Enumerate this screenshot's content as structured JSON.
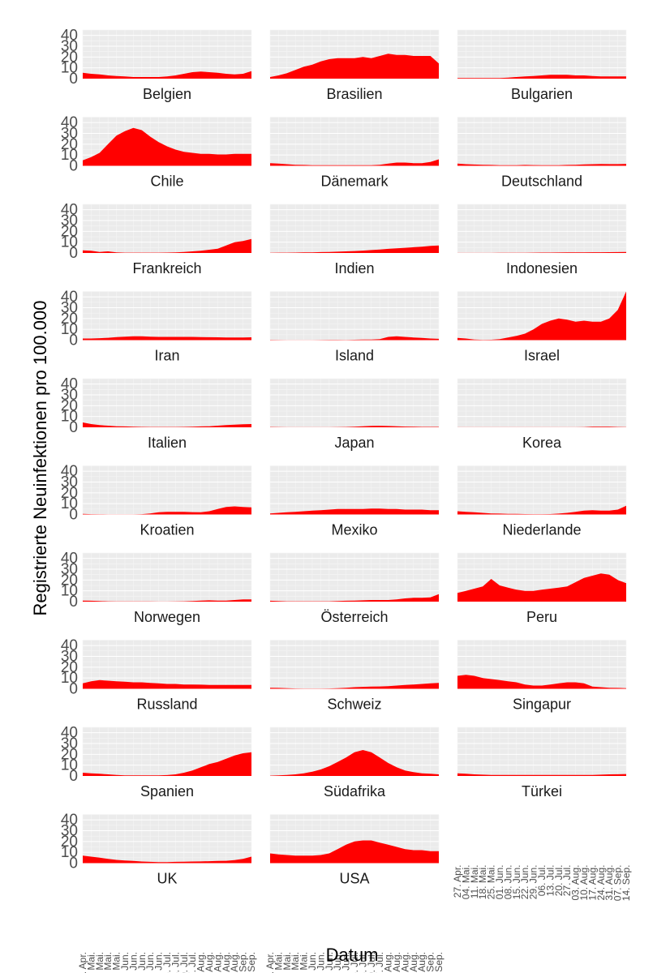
{
  "chart_data": {
    "type": "area",
    "facet_layout": "10 rows x 3 columns",
    "xlabel": "Datum",
    "ylabel": "Registrierte Neuinfektionen pro 100.000",
    "ylim": [
      0,
      45
    ],
    "yticks": [
      0,
      10,
      20,
      30,
      40
    ],
    "x_ticks": [
      "27. Apr.",
      "04. Mai.",
      "11. Mai.",
      "18. Mai.",
      "25. Mai.",
      "01. Jun.",
      "08. Jun.",
      "15. Jun.",
      "22. Jun.",
      "29. Jun.",
      "06. Jul.",
      "13. Jul.",
      "20. Jul.",
      "27. Jul.",
      "03. Aug.",
      "10. Aug.",
      "17. Aug.",
      "24. Aug.",
      "31. Aug.",
      "07. Sep.",
      "14. Sep."
    ],
    "series_note": "approximate weekly values read from the chart, one value per x tick",
    "color": "#ff0000",
    "series": [
      {
        "name": "Belgien",
        "values": [
          5.5,
          4.5,
          4,
          3,
          2.5,
          2,
          1.5,
          1.5,
          1.5,
          1.5,
          2,
          3,
          4.5,
          6,
          6.5,
          6,
          5.5,
          4.5,
          4,
          4.5,
          7
        ]
      },
      {
        "name": "Brasilien",
        "values": [
          1.5,
          3,
          5,
          8,
          11,
          13,
          16,
          18,
          19,
          19,
          19,
          20,
          19,
          21,
          23,
          22,
          22,
          21,
          21,
          21,
          14
        ]
      },
      {
        "name": "Bulgarien",
        "values": [
          0.5,
          0.5,
          0.5,
          0.5,
          0.5,
          0.5,
          1,
          1.5,
          2,
          2.5,
          3,
          3.5,
          3.5,
          3.5,
          3,
          3,
          2.5,
          2,
          2,
          2,
          2
        ]
      },
      {
        "name": "Chile",
        "values": [
          5,
          8,
          12,
          20,
          28,
          32,
          35,
          33,
          27,
          22,
          18,
          15,
          13,
          12,
          11,
          11,
          10.5,
          10.5,
          11,
          11,
          11
        ]
      },
      {
        "name": "Dänemark",
        "values": [
          2.5,
          2,
          1.5,
          1,
          0.8,
          0.6,
          0.5,
          0.5,
          0.5,
          0.5,
          0.5,
          0.5,
          0.6,
          1,
          2,
          3,
          3,
          2.5,
          2.5,
          3.5,
          6
        ]
      },
      {
        "name": "Deutschland",
        "values": [
          2,
          1.5,
          1.2,
          1,
          0.8,
          0.6,
          0.5,
          0.5,
          0.8,
          0.7,
          0.5,
          0.5,
          0.6,
          0.8,
          1,
          1.3,
          1.5,
          1.7,
          1.6,
          1.6,
          1.8
        ]
      },
      {
        "name": "Frankreich",
        "values": [
          2.5,
          2,
          1,
          1.5,
          0.5,
          0.3,
          0.3,
          0.3,
          0.3,
          0.3,
          0.4,
          0.6,
          1,
          1.5,
          2,
          3,
          4,
          7,
          10,
          11,
          13
        ]
      },
      {
        "name": "Indien",
        "values": [
          0.2,
          0.3,
          0.3,
          0.4,
          0.5,
          0.6,
          0.8,
          1,
          1.2,
          1.5,
          1.8,
          2.2,
          2.7,
          3.2,
          3.8,
          4.3,
          4.8,
          5.3,
          5.8,
          6.5,
          7
        ]
      },
      {
        "name": "Indonesien",
        "values": [
          0.1,
          0.1,
          0.1,
          0.1,
          0.1,
          0.15,
          0.2,
          0.2,
          0.25,
          0.3,
          0.35,
          0.4,
          0.45,
          0.5,
          0.55,
          0.6,
          0.65,
          0.7,
          0.75,
          0.8,
          0.9
        ]
      },
      {
        "name": "Iran",
        "values": [
          1.5,
          1.5,
          1.8,
          2.2,
          2.8,
          3.2,
          3.5,
          3.5,
          3.2,
          3,
          3,
          3,
          3,
          3,
          2.8,
          2.7,
          2.6,
          2.5,
          2.5,
          2.5,
          2.6
        ]
      },
      {
        "name": "Island",
        "values": [
          0.3,
          0.2,
          0.1,
          0.1,
          0.1,
          0.1,
          0.2,
          0.3,
          0.3,
          0.2,
          0.4,
          0.6,
          0.5,
          1,
          3,
          3.5,
          3,
          2.5,
          2,
          1.5,
          1.2
        ]
      },
      {
        "name": "Israel",
        "values": [
          2,
          1.5,
          0.5,
          0.3,
          0.4,
          1,
          2.5,
          4,
          6,
          10,
          15,
          18,
          20,
          19,
          17,
          18,
          17,
          17,
          20,
          28,
          45
        ]
      },
      {
        "name": "Italien",
        "values": [
          4.5,
          3,
          2,
          1.5,
          1,
          0.8,
          0.5,
          0.4,
          0.3,
          0.3,
          0.3,
          0.3,
          0.4,
          0.5,
          0.8,
          1,
          1.5,
          2,
          2.5,
          2.8,
          3
        ]
      },
      {
        "name": "Japan",
        "values": [
          0.3,
          0.2,
          0.1,
          0.1,
          0.1,
          0.1,
          0.1,
          0.1,
          0.2,
          0.3,
          0.6,
          1,
          1.3,
          1.4,
          1.2,
          0.9,
          0.7,
          0.5,
          0.4,
          0.4,
          0.4
        ]
      },
      {
        "name": "Korea",
        "values": [
          0.1,
          0.1,
          0.1,
          0.1,
          0.1,
          0.1,
          0.1,
          0.1,
          0.1,
          0.1,
          0.1,
          0.1,
          0.1,
          0.1,
          0.1,
          0.2,
          0.5,
          0.6,
          0.5,
          0.3,
          0.2
        ]
      },
      {
        "name": "Kroatien",
        "values": [
          0.5,
          0.3,
          0.2,
          0.1,
          0.1,
          0.1,
          0.1,
          0.3,
          1,
          2,
          2.5,
          2.5,
          2.5,
          2.2,
          2,
          3,
          5,
          7,
          7.5,
          7,
          6.5
        ]
      },
      {
        "name": "Mexiko",
        "values": [
          1,
          1.5,
          2,
          2.5,
          3,
          3.5,
          4,
          4.5,
          5,
          5,
          5,
          5,
          5.5,
          5.5,
          5,
          5,
          4.5,
          4.5,
          4.5,
          4,
          4
        ]
      },
      {
        "name": "Niederlande",
        "values": [
          3,
          2.5,
          2,
          1.5,
          1,
          0.8,
          0.5,
          0.5,
          0.4,
          0.3,
          0.3,
          0.4,
          0.8,
          1.5,
          2.5,
          3.5,
          4,
          3.5,
          3.5,
          4.5,
          8
        ]
      },
      {
        "name": "Norwegen",
        "values": [
          1,
          0.8,
          0.5,
          0.3,
          0.2,
          0.2,
          0.2,
          0.2,
          0.2,
          0.1,
          0.1,
          0.2,
          0.3,
          0.5,
          1,
          1.2,
          1,
          1,
          1.5,
          2,
          2
        ]
      },
      {
        "name": "Österreich",
        "values": [
          0.8,
          0.5,
          0.3,
          0.3,
          0.3,
          0.3,
          0.3,
          0.3,
          0.5,
          0.8,
          1,
          1.2,
          1.5,
          1.5,
          1.5,
          2,
          3,
          3.5,
          3.5,
          4,
          7
        ]
      },
      {
        "name": "Peru",
        "values": [
          8,
          10,
          12,
          14,
          21,
          15,
          13,
          11,
          10,
          10,
          11,
          12,
          13,
          14,
          18,
          22,
          24,
          26,
          25,
          20,
          17
        ]
      },
      {
        "name": "Russland",
        "values": [
          5,
          7,
          8,
          7.5,
          7,
          6.5,
          6,
          6,
          5.5,
          5,
          4.5,
          4.5,
          4,
          4,
          3.8,
          3.5,
          3.5,
          3.5,
          3.5,
          3.5,
          3.5
        ]
      },
      {
        "name": "Schweiz",
        "values": [
          1,
          0.8,
          0.5,
          0.3,
          0.2,
          0.2,
          0.2,
          0.3,
          0.5,
          1,
          1.5,
          1.8,
          2,
          2.2,
          2.5,
          3,
          3.5,
          4,
          4.5,
          5,
          5.5
        ]
      },
      {
        "name": "Singapur",
        "values": [
          12,
          13,
          12,
          10,
          9,
          8,
          7,
          6,
          4,
          3,
          3,
          4,
          5,
          6,
          6,
          5,
          2,
          1.5,
          1,
          0.8,
          0.6
        ]
      },
      {
        "name": "Spanien",
        "values": [
          3,
          2.5,
          2,
          1.5,
          1,
          0.5,
          0.5,
          0.5,
          0.5,
          0.5,
          0.8,
          1.5,
          3,
          5,
          8,
          11,
          13,
          16,
          19,
          21,
          22
        ]
      },
      {
        "name": "Südafrika",
        "values": [
          0.3,
          0.5,
          1,
          1.5,
          2.5,
          4,
          6,
          9,
          13,
          17,
          22,
          24,
          22,
          17,
          12,
          8,
          5,
          3.5,
          2.5,
          2,
          1.5
        ]
      },
      {
        "name": "Türkei",
        "values": [
          2.5,
          2,
          1.5,
          1.2,
          1,
          1,
          1,
          1,
          1,
          1,
          1,
          1,
          1,
          1,
          1,
          1,
          1,
          1.2,
          1.5,
          1.6,
          1.8
        ]
      },
      {
        "name": "UK",
        "values": [
          7,
          6,
          5,
          4,
          3,
          2.5,
          2,
          1.5,
          1.2,
          1,
          1,
          1.2,
          1.3,
          1.5,
          1.6,
          1.8,
          2,
          2.2,
          2.8,
          4,
          6
        ]
      },
      {
        "name": "USA",
        "values": [
          9,
          8,
          7.5,
          7,
          7,
          7,
          7.5,
          9,
          13,
          17,
          20,
          21,
          21,
          19,
          17,
          15,
          13,
          12,
          12,
          11,
          11
        ]
      }
    ]
  }
}
